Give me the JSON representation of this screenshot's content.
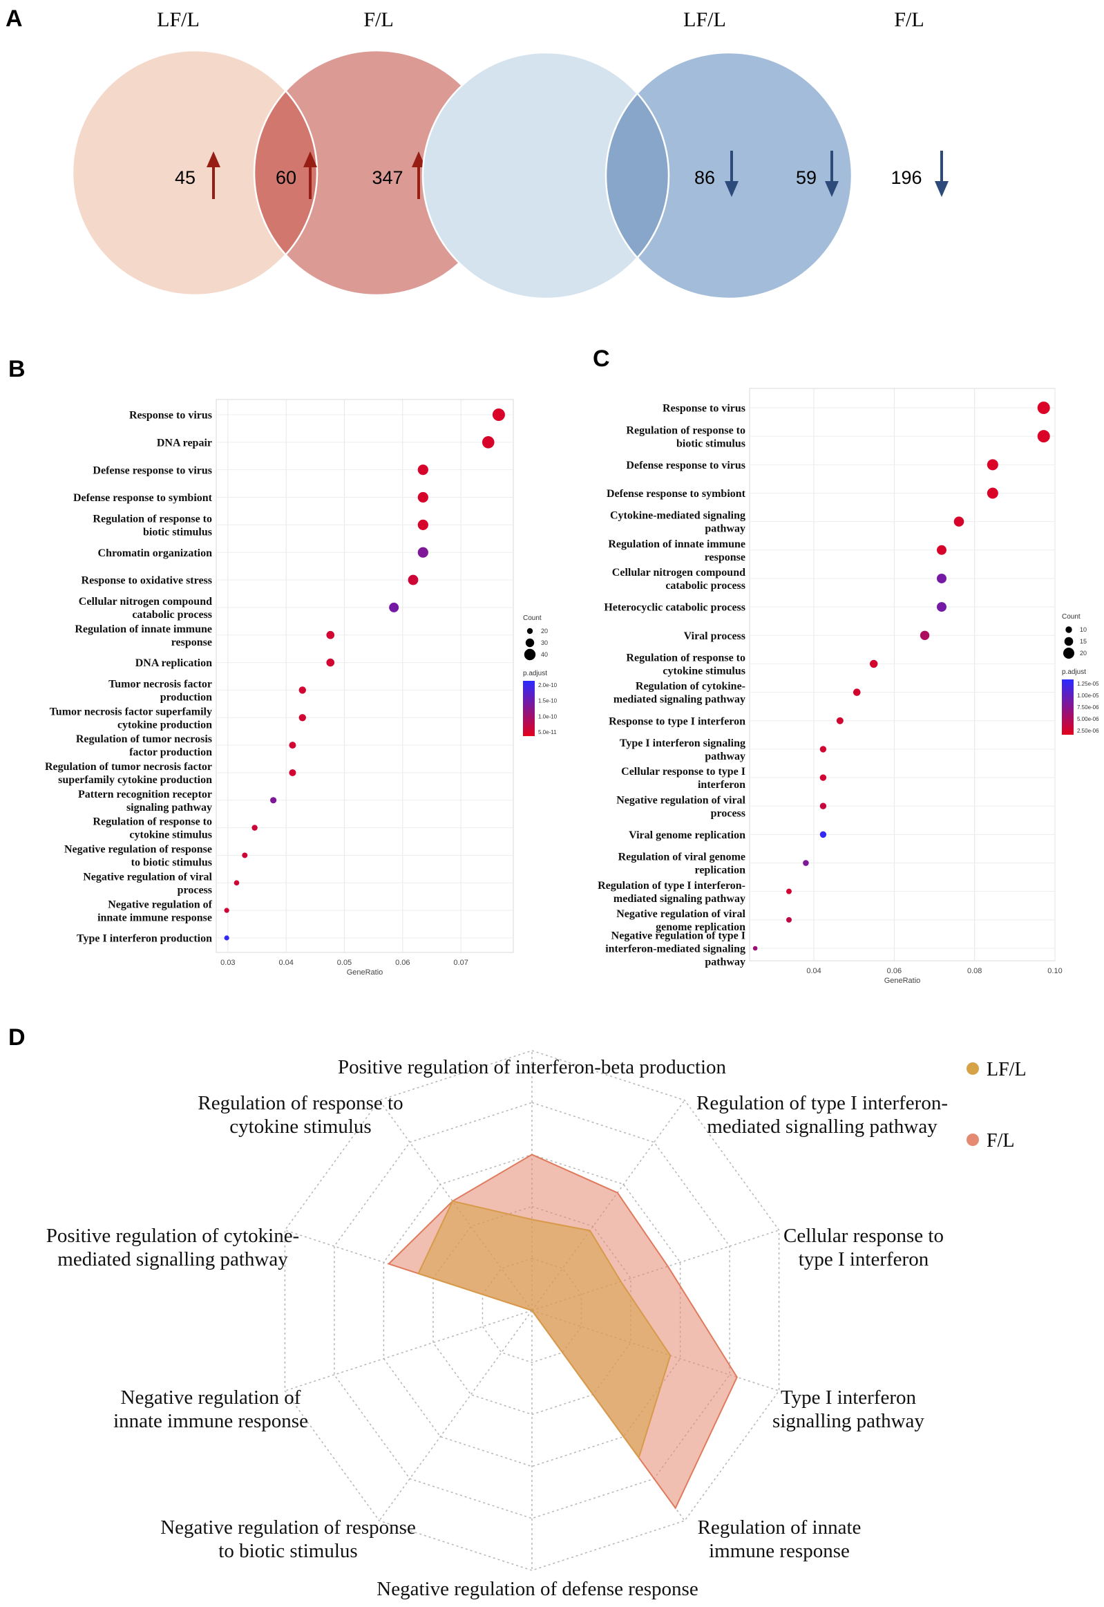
{
  "panels": {
    "A": "A",
    "B": "B",
    "C": "C",
    "D": "D"
  },
  "colors": {
    "venn_up_left": "#f4d9cb",
    "venn_up_right": "#dc9a95",
    "venn_up_overlap": "#d2776d",
    "arrow_up": "#961e14",
    "venn_down_left": "#d5e3ef",
    "venn_down_right": "#a2bcd9",
    "venn_down_overlap": "#87a6c9",
    "arrow_down": "#2c4b7a",
    "radar_lf": "#d6a347",
    "radar_f": "#e48a72",
    "padj_low": "#e3001b",
    "padj_high": "#2b2bff"
  },
  "venn": {
    "up": {
      "left_label": "LF/L",
      "right_label": "F/L",
      "left_only": "45",
      "shared": "60",
      "right_only": "347",
      "direction": "up"
    },
    "down": {
      "left_label": "LF/L",
      "right_label": "F/L",
      "left_only": "86",
      "shared": "59",
      "right_only": "196",
      "direction": "down"
    }
  },
  "chart_data": [
    {
      "id": "B",
      "type": "scatter",
      "xlabel": "GeneRatio",
      "xlim": [
        0.028,
        0.079
      ],
      "xticks": [
        "0.03",
        "0.04",
        "0.05",
        "0.06",
        "0.07"
      ],
      "xtick_values": [
        0.03,
        0.04,
        0.05,
        0.06,
        0.07
      ],
      "size_legend": {
        "title": "Count",
        "labels": [
          "20",
          "30",
          "40"
        ],
        "values": [
          20,
          30,
          40
        ]
      },
      "color_legend": {
        "title": "p.adjust",
        "labels": [
          "2.0e-10",
          "1.5e-10",
          "1.0e-10",
          "5.0e-11"
        ]
      },
      "terms": [
        {
          "label": [
            "Response to virus"
          ],
          "x": 0.0765,
          "count": 44,
          "padj": 0.05
        },
        {
          "label": [
            "DNA repair"
          ],
          "x": 0.0747,
          "count": 43,
          "padj": 0.06
        },
        {
          "label": [
            "Defense response to virus"
          ],
          "x": 0.0635,
          "count": 37,
          "padj": 0.07
        },
        {
          "label": [
            "Defense response to symbiont"
          ],
          "x": 0.0635,
          "count": 37,
          "padj": 0.07
        },
        {
          "label": [
            "Regulation of response to",
            "biotic stimulus"
          ],
          "x": 0.0635,
          "count": 37,
          "padj": 0.07
        },
        {
          "label": [
            "Chromatin organization"
          ],
          "x": 0.0635,
          "count": 37,
          "padj": 0.55
        },
        {
          "label": [
            "Response to oxidative stress"
          ],
          "x": 0.0618,
          "count": 36,
          "padj": 0.12
        },
        {
          "label": [
            "Cellular nitrogen compound",
            "catabolic process"
          ],
          "x": 0.0585,
          "count": 34,
          "padj": 0.6
        },
        {
          "label": [
            "Regulation of innate immune",
            "response"
          ],
          "x": 0.0476,
          "count": 28,
          "padj": 0.1
        },
        {
          "label": [
            "DNA replication"
          ],
          "x": 0.0476,
          "count": 28,
          "padj": 0.1
        },
        {
          "label": [
            "Tumor necrosis factor",
            "production"
          ],
          "x": 0.0428,
          "count": 25,
          "padj": 0.1
        },
        {
          "label": [
            "Tumor necrosis factor superfamily",
            "cytokine production"
          ],
          "x": 0.0428,
          "count": 25,
          "padj": 0.1
        },
        {
          "label": [
            "Regulation of tumor necrosis",
            "factor production"
          ],
          "x": 0.0411,
          "count": 24,
          "padj": 0.1
        },
        {
          "label": [
            "Regulation of tumor necrosis factor",
            "superfamily cytokine production"
          ],
          "x": 0.0411,
          "count": 24,
          "padj": 0.1
        },
        {
          "label": [
            "Pattern recognition receptor",
            "signaling pathway"
          ],
          "x": 0.0378,
          "count": 22,
          "padj": 0.55
        },
        {
          "label": [
            "Regulation of response to",
            "cytokine stimulus"
          ],
          "x": 0.0346,
          "count": 20,
          "padj": 0.12
        },
        {
          "label": [
            "Negative regulation of response",
            "to biotic stimulus"
          ],
          "x": 0.0329,
          "count": 19,
          "padj": 0.12
        },
        {
          "label": [
            "Negative regulation of viral",
            "process"
          ],
          "x": 0.0315,
          "count": 18,
          "padj": 0.12
        },
        {
          "label": [
            "Negative regulation of",
            "innate immune response"
          ],
          "x": 0.0298,
          "count": 17,
          "padj": 0.12
        },
        {
          "label": [
            "Type I interferon production"
          ],
          "x": 0.0298,
          "count": 17,
          "padj": 0.95
        }
      ]
    },
    {
      "id": "C",
      "type": "scatter",
      "xlabel": "GeneRatio",
      "xlim": [
        0.024,
        0.1
      ],
      "xticks": [
        "0.04",
        "0.06",
        "0.08",
        "0.10"
      ],
      "xtick_values": [
        0.04,
        0.06,
        0.08,
        0.1
      ],
      "size_legend": {
        "title": "Count",
        "labels": [
          "10",
          "15",
          "20"
        ],
        "values": [
          10,
          15,
          20
        ]
      },
      "color_legend": {
        "title": "p.adjust",
        "labels": [
          "1.25e-05",
          "1.00e-05",
          "7.50e-06",
          "5.00e-06",
          "2.50e-06"
        ]
      },
      "terms": [
        {
          "label": [
            "Response to virus"
          ],
          "x": 0.0972,
          "count": 23,
          "padj": 0.05
        },
        {
          "label": [
            "Regulation of response to",
            "biotic stimulus"
          ],
          "x": 0.0972,
          "count": 23,
          "padj": 0.05
        },
        {
          "label": [
            "Defense response to virus"
          ],
          "x": 0.0845,
          "count": 20,
          "padj": 0.05
        },
        {
          "label": [
            "Defense response to symbiont"
          ],
          "x": 0.0845,
          "count": 20,
          "padj": 0.05
        },
        {
          "label": [
            "Cytokine-mediated signaling",
            "pathway"
          ],
          "x": 0.0761,
          "count": 18,
          "padj": 0.07
        },
        {
          "label": [
            "Regulation of innate immune",
            "response"
          ],
          "x": 0.0718,
          "count": 17,
          "padj": 0.07
        },
        {
          "label": [
            "Cellular nitrogen compound",
            "catabolic process"
          ],
          "x": 0.0718,
          "count": 17,
          "padj": 0.6
        },
        {
          "label": [
            "Heterocyclic catabolic process"
          ],
          "x": 0.0718,
          "count": 17,
          "padj": 0.6
        },
        {
          "label": [
            "Viral process"
          ],
          "x": 0.0676,
          "count": 16,
          "padj": 0.3
        },
        {
          "label": [
            "Regulation of response to",
            "cytokine stimulus"
          ],
          "x": 0.0549,
          "count": 13,
          "padj": 0.08
        },
        {
          "label": [
            "Regulation of cytokine-",
            "mediated signaling pathway"
          ],
          "x": 0.0507,
          "count": 12,
          "padj": 0.08
        },
        {
          "label": [
            "Response to type I interferon"
          ],
          "x": 0.0465,
          "count": 11,
          "padj": 0.1
        },
        {
          "label": [
            "Type I interferon signaling",
            "pathway"
          ],
          "x": 0.0423,
          "count": 10,
          "padj": 0.1
        },
        {
          "label": [
            "Cellular response to type I",
            "interferon"
          ],
          "x": 0.0423,
          "count": 10,
          "padj": 0.1
        },
        {
          "label": [
            "Negative regulation of viral",
            "process"
          ],
          "x": 0.0423,
          "count": 10,
          "padj": 0.15
        },
        {
          "label": [
            "Viral genome replication"
          ],
          "x": 0.0423,
          "count": 10,
          "padj": 0.95
        },
        {
          "label": [
            "Regulation of viral genome",
            "replication"
          ],
          "x": 0.038,
          "count": 9,
          "padj": 0.55
        },
        {
          "label": [
            "Regulation of type I interferon-",
            "mediated  signaling pathway"
          ],
          "x": 0.0338,
          "count": 8,
          "padj": 0.1
        },
        {
          "label": [
            "Negative regulation of viral",
            "genome replication"
          ],
          "x": 0.0338,
          "count": 8,
          "padj": 0.2
        },
        {
          "label": [
            "Negative regulation of type I",
            "interferon-mediated  signaling",
            "pathway"
          ],
          "x": 0.0254,
          "count": 6,
          "padj": 0.4
        }
      ]
    },
    {
      "id": "D",
      "type": "radar",
      "max": 1,
      "rings": 5,
      "legend": [
        "LF/L",
        "F/L"
      ],
      "axes": [
        {
          "label": [
            "Positive regulation of interferon-beta production"
          ]
        },
        {
          "label": [
            "Regulation of type I interferon-",
            "mediated signalling pathway"
          ]
        },
        {
          "label": [
            "Cellular response to",
            "type I interferon"
          ]
        },
        {
          "label": [
            "Type I interferon",
            "signalling pathway"
          ]
        },
        {
          "label": [
            "Regulation of innate",
            "immune response"
          ]
        },
        {
          "label": [
            "Negative regulation of defense response"
          ]
        },
        {
          "label": [
            "Negative regulation of response",
            "to biotic stimulus"
          ]
        },
        {
          "label": [
            "Negative regulation of",
            "innate immune response"
          ]
        },
        {
          "label": [
            "Positive regulation of cytokine-",
            "mediated signalling pathway"
          ]
        },
        {
          "label": [
            "Regulation of response to",
            "cytokine stimulus"
          ]
        }
      ],
      "series": [
        {
          "name": "LF/L",
          "values": [
            0.35,
            0.38,
            0.36,
            0.56,
            0.7,
            0.0,
            0.0,
            0.0,
            0.46,
            0.52
          ]
        },
        {
          "name": "F/L",
          "values": [
            0.6,
            0.56,
            0.55,
            0.83,
            0.94,
            0.0,
            0.0,
            0.0,
            0.58,
            0.52
          ]
        }
      ]
    }
  ]
}
